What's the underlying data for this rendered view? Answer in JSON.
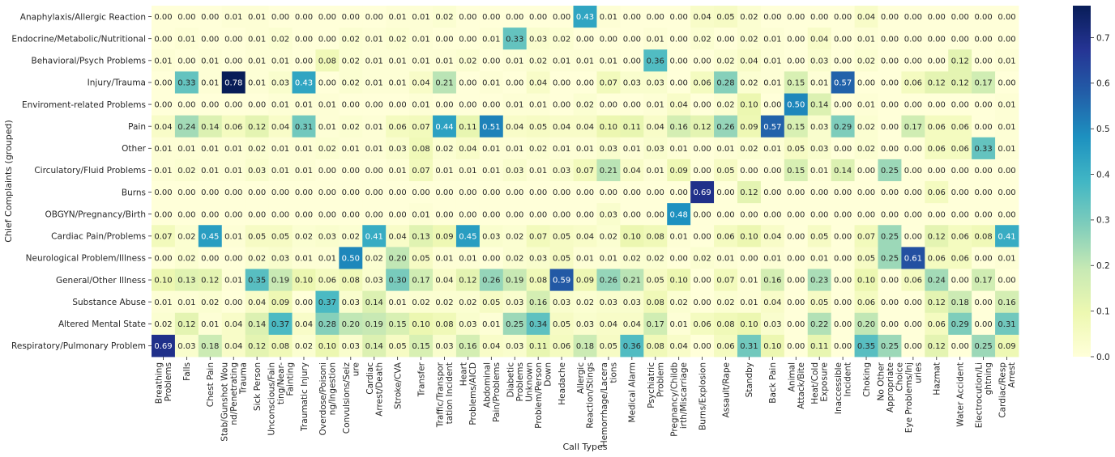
{
  "chart_data": {
    "type": "heatmap",
    "title": "",
    "xlabel": "Call Types",
    "ylabel": "Chief Complaints (grouped)",
    "colormap": "YlGnBu",
    "color_range": [
      0.0,
      0.77
    ],
    "colorbar_ticks": [
      "0.0",
      "0.1",
      "0.2",
      "0.3",
      "0.4",
      "0.5",
      "0.6",
      "0.7"
    ],
    "colorbar_tick_values": [
      0.0,
      0.1,
      0.2,
      0.3,
      0.4,
      0.5,
      0.6,
      0.7
    ],
    "columns": [
      [
        "Breathing",
        "Problems"
      ],
      [
        "Falls"
      ],
      [
        "Chest Pain"
      ],
      [
        "Stab/Gunshot Wou",
        "nd/Penetrating",
        "Trauma"
      ],
      [
        "Sick Person"
      ],
      [
        "Unconscious/Fain",
        "ting/Near-",
        "Fainting"
      ],
      [
        "Traumatic Injury"
      ],
      [
        "Overdose/Poisoni",
        "ng/Ingestion"
      ],
      [
        "Convulsions/Seiz",
        "ure"
      ],
      [
        "Cardiac",
        "Arrest/Death"
      ],
      [
        "Stroke/CVA"
      ],
      [
        "Transfer"
      ],
      [
        "Traffic/Transpor",
        "tation Incident"
      ],
      [
        "Heart",
        "Problems/AICD"
      ],
      [
        "Abdominal",
        "Pain/Problems"
      ],
      [
        "Diabetic",
        "Problems"
      ],
      [
        "Unknown",
        "Problem/Person",
        "Down"
      ],
      [
        "Headache"
      ],
      [
        "Allergic",
        "Reaction/Stings"
      ],
      [
        "Hemorrhage/Lacera",
        "tions"
      ],
      [
        "Medical Alarm"
      ],
      [
        "Psychiatric",
        "Problem"
      ],
      [
        "Pregnancy/Childb",
        "irth/Miscarriage"
      ],
      [
        "Burns/Explosion"
      ],
      [
        "Assault/Rape"
      ],
      [
        "Standby"
      ],
      [
        "Back Pain"
      ],
      [
        "Animal",
        "Attack/Bite"
      ],
      [
        "Heat/Cold",
        "Exposure"
      ],
      [
        "Inaccessible",
        "Incident"
      ],
      [
        "Choking"
      ],
      [
        "No Other",
        "Appropriate",
        "Choice"
      ],
      [
        "Eye Problems/Inj",
        "uries"
      ],
      [
        "Hazmat"
      ],
      [
        "Water Accident"
      ],
      [
        "Electrocution/Li",
        "ghtning"
      ],
      [
        "Cardiac/Resp",
        "Arrest"
      ]
    ],
    "rows": [
      "Anaphylaxis/Allergic Reaction",
      "Endocrine/Metabolic/Nutritional",
      "Behavioral/Psych Problems",
      "Injury/Trauma",
      "Enviroment-related Problems",
      "Pain",
      "Other",
      "Circulatory/Fluid Problems",
      "Burns",
      "OBGYN/Pregnancy/Birth",
      "Cardiac Pain/Problems",
      "Neurological Problem/Illness",
      "General/Other Illness",
      "Substance Abuse",
      "Altered Mental State",
      "Respiratory/Pulmonary Problem"
    ],
    "values": [
      [
        0.0,
        0.0,
        0.0,
        0.01,
        0.01,
        0.0,
        0.0,
        0.0,
        0.0,
        0.0,
        0.01,
        0.01,
        0.02,
        0.0,
        0.0,
        0.0,
        0.0,
        0.0,
        0.43,
        0.01,
        0.0,
        0.0,
        0.0,
        0.04,
        0.05,
        0.02,
        0.0,
        0.0,
        0.0,
        0.0,
        0.04,
        0.0,
        0.0,
        0.0,
        0.0,
        0.0,
        0.0
      ],
      [
        0.0,
        0.01,
        0.0,
        0.0,
        0.01,
        0.02,
        0.0,
        0.0,
        0.02,
        0.01,
        0.02,
        0.01,
        0.0,
        0.0,
        0.01,
        0.33,
        0.03,
        0.02,
        0.0,
        0.0,
        0.0,
        0.01,
        0.0,
        0.02,
        0.0,
        0.02,
        0.01,
        0.0,
        0.04,
        0.0,
        0.01,
        0.0,
        0.0,
        0.0,
        0.0,
        0.0,
        0.0
      ],
      [
        0.01,
        0.0,
        0.01,
        0.0,
        0.01,
        0.01,
        0.0,
        0.08,
        0.02,
        0.01,
        0.01,
        0.01,
        0.01,
        0.02,
        0.0,
        0.01,
        0.02,
        0.01,
        0.01,
        0.01,
        0.0,
        0.36,
        0.0,
        0.0,
        0.02,
        0.04,
        0.01,
        0.0,
        0.03,
        0.0,
        0.02,
        0.0,
        0.0,
        0.0,
        0.12,
        0.0,
        0.01
      ],
      [
        0.0,
        0.33,
        0.01,
        0.78,
        0.01,
        0.03,
        0.43,
        0.0,
        0.02,
        0.01,
        0.01,
        0.04,
        0.21,
        0.0,
        0.01,
        0.0,
        0.04,
        0.0,
        0.0,
        0.07,
        0.03,
        0.03,
        0.0,
        0.06,
        0.28,
        0.02,
        0.01,
        0.15,
        0.01,
        0.57,
        0.0,
        0.0,
        0.06,
        0.12,
        0.12,
        0.17,
        0.0
      ],
      [
        0.0,
        0.0,
        0.0,
        0.0,
        0.0,
        0.01,
        0.01,
        0.01,
        0.0,
        0.0,
        0.0,
        0.01,
        0.0,
        0.0,
        0.0,
        0.01,
        0.01,
        0.0,
        0.02,
        0.0,
        0.0,
        0.01,
        0.04,
        0.0,
        0.02,
        0.1,
        0.0,
        0.5,
        0.14,
        0.0,
        0.01,
        0.0,
        0.0,
        0.0,
        0.0,
        0.0,
        0.01
      ],
      [
        0.04,
        0.24,
        0.14,
        0.06,
        0.12,
        0.04,
        0.31,
        0.01,
        0.02,
        0.01,
        0.06,
        0.07,
        0.44,
        0.11,
        0.51,
        0.04,
        0.05,
        0.04,
        0.04,
        0.1,
        0.11,
        0.04,
        0.16,
        0.12,
        0.26,
        0.09,
        0.57,
        0.15,
        0.03,
        0.29,
        0.02,
        0.0,
        0.17,
        0.06,
        0.06,
        0.0,
        0.01
      ],
      [
        0.01,
        0.01,
        0.01,
        0.01,
        0.02,
        0.01,
        0.01,
        0.02,
        0.01,
        0.01,
        0.03,
        0.08,
        0.02,
        0.04,
        0.01,
        0.01,
        0.02,
        0.01,
        0.01,
        0.03,
        0.01,
        0.03,
        0.01,
        0.0,
        0.01,
        0.02,
        0.01,
        0.05,
        0.03,
        0.0,
        0.02,
        0.0,
        0.0,
        0.06,
        0.06,
        0.33,
        0.01
      ],
      [
        0.01,
        0.02,
        0.01,
        0.01,
        0.03,
        0.01,
        0.01,
        0.0,
        0.0,
        0.0,
        0.01,
        0.07,
        0.01,
        0.01,
        0.01,
        0.03,
        0.01,
        0.03,
        0.07,
        0.21,
        0.04,
        0.01,
        0.09,
        0.0,
        0.05,
        0.0,
        0.0,
        0.15,
        0.01,
        0.14,
        0.0,
        0.25,
        0.0,
        0.0,
        0.0,
        0.0,
        0.0
      ],
      [
        0.0,
        0.0,
        0.0,
        0.0,
        0.0,
        0.0,
        0.0,
        0.0,
        0.0,
        0.0,
        0.0,
        0.0,
        0.0,
        0.0,
        0.0,
        0.0,
        0.0,
        0.0,
        0.0,
        0.0,
        0.0,
        0.0,
        0.0,
        0.69,
        0.0,
        0.12,
        0.0,
        0.0,
        0.0,
        0.0,
        0.0,
        0.0,
        0.0,
        0.06,
        0.0,
        0.0,
        0.0
      ],
      [
        0.0,
        0.0,
        0.0,
        0.0,
        0.0,
        0.0,
        0.0,
        0.0,
        0.0,
        0.0,
        0.0,
        0.01,
        0.0,
        0.0,
        0.0,
        0.0,
        0.0,
        0.0,
        0.0,
        0.03,
        0.0,
        0.0,
        0.48,
        0.0,
        0.0,
        0.0,
        0.0,
        0.0,
        0.0,
        0.0,
        0.0,
        0.0,
        0.0,
        0.0,
        0.0,
        0.0,
        0.0
      ],
      [
        0.07,
        0.02,
        0.45,
        0.01,
        0.05,
        0.05,
        0.02,
        0.03,
        0.02,
        0.41,
        0.04,
        0.13,
        0.09,
        0.45,
        0.03,
        0.02,
        0.07,
        0.05,
        0.04,
        0.02,
        0.1,
        0.08,
        0.01,
        0.0,
        0.06,
        0.1,
        0.04,
        0.0,
        0.05,
        0.0,
        0.07,
        0.25,
        0.0,
        0.12,
        0.06,
        0.08,
        0.41
      ],
      [
        0.0,
        0.02,
        0.0,
        0.0,
        0.02,
        0.03,
        0.01,
        0.01,
        0.5,
        0.02,
        0.2,
        0.05,
        0.01,
        0.01,
        0.0,
        0.02,
        0.03,
        0.05,
        0.01,
        0.01,
        0.02,
        0.02,
        0.0,
        0.02,
        0.01,
        0.0,
        0.01,
        0.0,
        0.01,
        0.0,
        0.05,
        0.25,
        0.61,
        0.06,
        0.06,
        0.0,
        0.01
      ],
      [
        0.1,
        0.13,
        0.12,
        0.01,
        0.35,
        0.19,
        0.1,
        0.06,
        0.08,
        0.03,
        0.3,
        0.17,
        0.04,
        0.12,
        0.26,
        0.19,
        0.08,
        0.59,
        0.09,
        0.26,
        0.21,
        0.05,
        0.1,
        0.0,
        0.07,
        0.01,
        0.16,
        0.0,
        0.23,
        0.0,
        0.1,
        0.0,
        0.06,
        0.24,
        0.0,
        0.17,
        0.0
      ],
      [
        0.01,
        0.01,
        0.02,
        0.0,
        0.04,
        0.09,
        0.0,
        0.37,
        0.03,
        0.14,
        0.01,
        0.02,
        0.02,
        0.02,
        0.05,
        0.03,
        0.16,
        0.03,
        0.02,
        0.03,
        0.03,
        0.08,
        0.02,
        0.0,
        0.02,
        0.01,
        0.04,
        0.0,
        0.05,
        0.0,
        0.06,
        0.0,
        0.0,
        0.12,
        0.18,
        0.0,
        0.16
      ],
      [
        0.02,
        0.12,
        0.01,
        0.04,
        0.14,
        0.37,
        0.04,
        0.28,
        0.2,
        0.19,
        0.15,
        0.1,
        0.08,
        0.03,
        0.01,
        0.25,
        0.34,
        0.05,
        0.03,
        0.04,
        0.04,
        0.17,
        0.01,
        0.06,
        0.08,
        0.1,
        0.03,
        0.0,
        0.22,
        0.0,
        0.2,
        0.0,
        0.0,
        0.06,
        0.29,
        0.0,
        0.31
      ],
      [
        0.69,
        0.03,
        0.18,
        0.04,
        0.12,
        0.08,
        0.02,
        0.1,
        0.03,
        0.14,
        0.05,
        0.15,
        0.03,
        0.16,
        0.04,
        0.03,
        0.11,
        0.06,
        0.18,
        0.05,
        0.36,
        0.08,
        0.04,
        0.0,
        0.06,
        0.31,
        0.1,
        0.0,
        0.11,
        0.0,
        0.35,
        0.25,
        0.0,
        0.12,
        0.0,
        0.25,
        0.09
      ]
    ]
  }
}
